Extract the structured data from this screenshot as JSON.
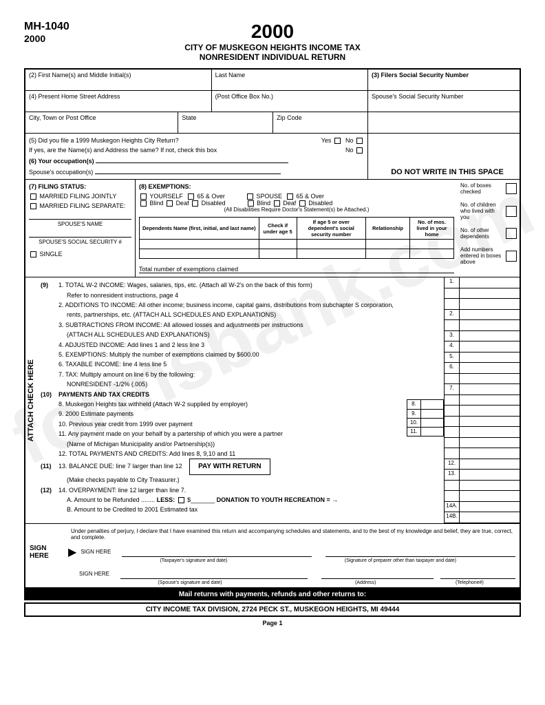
{
  "form_id": "MH-1040",
  "year": "2000",
  "title1": "CITY OF MUSKEGON HEIGHTS INCOME TAX",
  "title2": "NONRESIDENT INDIVIDUAL RETURN",
  "watermark": "formsbank.com",
  "fields": {
    "f2a": "(2) First Name(s) and Middle Initial(s)",
    "f2b": "Last Name",
    "f3": "(3) Filers Social Security Number",
    "f4a": "(4) Present Home Street Address",
    "f4b": "(Post Office Box No.)",
    "f4c": "Spouse's Social Security Number",
    "city": "City, Town or Post Office",
    "state": "State",
    "zip": "Zip Code",
    "f5a": "(5) Did you file a 1999 Muskegon Heights City Return?",
    "f5b": "If yes, are the Name(s) and Address the same? If not, check this box",
    "yes": "Yes",
    "no": "No",
    "f6a": "(6) Your occupation(s)",
    "f6b": "Spouse's occupation(s)",
    "no_write": "DO NOT WRITE IN THIS SPACE"
  },
  "filing": {
    "title": "(7) FILING STATUS:",
    "joint": "MARRIED FILING JOINTLY",
    "separate": "MARRIED FILING SEPARATE:",
    "spouse_name": "SPOUSE'S NAME",
    "spouse_ssn": "SPOUSE'S SOCIAL SECURITY #",
    "single": "SINGLE"
  },
  "exemptions": {
    "title": "(8) EXEMPTIONS:",
    "yourself": "YOURSELF",
    "over65": "65 & Over",
    "spouse": "SPOUSE",
    "blind": "Blind",
    "deaf": "Deaf",
    "disabled": "Disabled",
    "note": "(All Disabilities Require Doctor's Statement(s) be Attached.)",
    "dep_cols": [
      "Dependents\nName (first, initial, and last name)",
      "Check if under age 5",
      "If age 5 or over dependent's social security number",
      "Relationship",
      "No. of mos. lived in your home"
    ],
    "total": "Total number of exemptions claimed",
    "rb1": "No. of boxes checked",
    "rb2": "No. of children who lived with you",
    "rb3": "No. of other dependents",
    "rb4": "Add numbers entered in boxes above"
  },
  "attach": "ATTACH CHECK HERE",
  "sections": {
    "s9": "(9)",
    "s10": "(10)",
    "s11": "(11)",
    "s12": "(12)"
  },
  "lines": {
    "l1": "1. TOTAL W-2 INCOME: Wages, salaries, tips, etc. (Attach all W-2's on the back of this form)",
    "l1b": "Refer to nonresident instructions, page 4",
    "l2": "2. ADDITIONS TO INCOME: All other income; business income, capital gains, distributions from subchapter S corporation,",
    "l2b": "rents, partnerships, etc. (ATTACH ALL SCHEDULES AND EXPLANATIONS)",
    "l3": "3. SUBTRACTIONS FROM INCOME: All allowed losses and adjustments per instructions",
    "l3b": "(ATTACH ALL SCHEDULES AND EXPLANATIONS)",
    "l4": "4. ADJUSTED INCOME: Add lines 1 and 2 less line 3",
    "l5": "5. EXEMPTIONS: Multiply the number of exemptions claimed by $600.00",
    "l6": "6. TAXABLE INCOME: line 4 less line 5",
    "l7": "7. TAX: Multiply amount on line 6 by the following:",
    "l7b": "NONRESIDENT -1/2% (.005)",
    "s10t": "PAYMENTS AND TAX CREDITS",
    "l8": "8. Muskegon Heights tax withheld (Attach W-2 supplied by employer)",
    "l9": "9. 2000 Estimate payments",
    "l10": "10. Previous year credit from 1999 over payment",
    "l11": "11. Any payment made on your behalf by a partership of which you were a partner",
    "l11b": "(Name of Michigan Municipality and/or Partnership(s))",
    "l12": "12. TOTAL PAYMENTS AND CREDITS: Add lines 8, 9,10 and 11",
    "l13": "13. BALANCE DUE: line 7 larger than line 12",
    "l13b": "(Make checks payable to City Treasurer.)",
    "l14": "14. OVERPAYMENT: line 12 larger than line 7.",
    "l14a": "A. Amount to be Refunded",
    "l14a2": "LESS:",
    "l14a3": "DONATION TO YOUTH RECREATION  =",
    "l14b": "B. Amount to be Credited to 2001 Estimated tax",
    "pay": "PAY WITH RETURN"
  },
  "amt_nums": [
    "1.",
    "",
    "",
    "2.",
    "",
    "3.",
    "4.",
    "5.",
    "6.",
    "",
    "7.",
    "",
    "",
    "",
    "",
    "",
    "",
    "12.",
    "13.",
    "",
    "",
    "14A.",
    "14B."
  ],
  "sign": {
    "perjury": "Under penalties of perjury, I declare that I have examined this return and accompanying schedules and statements, and to the best of my knowledge and belief, they are true, correct, and complete.",
    "sign_here": "SIGN HERE",
    "sh": "SIGN HERE",
    "tax_sig": "(Taxpayer's signature and date)",
    "prep_sig": "(Signature of preparer other than taxpayer and date)",
    "sp_sig": "(Spouse's signature and date)",
    "addr": "(Address)",
    "tel": "(Telephone#)"
  },
  "footer": {
    "mail": "Mail returns with payments, refunds and other returns to:",
    "address": "CITY INCOME TAX DIVISION, 2724 PECK ST., MUSKEGON HEIGHTS, MI 49444",
    "page": "Page 1"
  }
}
